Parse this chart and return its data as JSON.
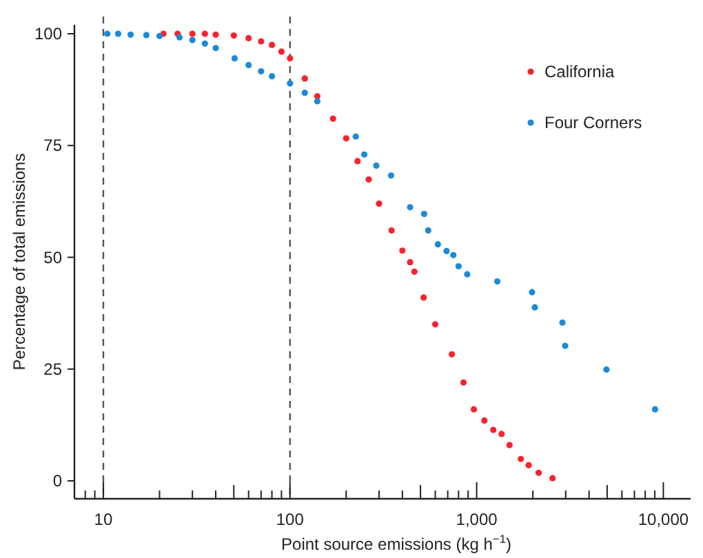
{
  "chart_data": {
    "type": "scatter",
    "xlabel": "Point source emissions (kg h$^{−1}$)",
    "ylabel": "Percentage of total emissions",
    "log": "x",
    "xlim": [
      7,
      14000
    ],
    "ylim": [
      -4,
      102
    ],
    "xticks": [
      {
        "value": 8,
        "label": null
      },
      {
        "value": 9,
        "label": null
      },
      {
        "value": 10,
        "label": "10"
      },
      {
        "value": 20,
        "label": null
      },
      {
        "value": 30,
        "label": null
      },
      {
        "value": 40,
        "label": null
      },
      {
        "value": 50,
        "label": null
      },
      {
        "value": 60,
        "label": null
      },
      {
        "value": 70,
        "label": null
      },
      {
        "value": 80,
        "label": null
      },
      {
        "value": 90,
        "label": null
      },
      {
        "value": 100,
        "label": "100"
      },
      {
        "value": 200,
        "label": null
      },
      {
        "value": 300,
        "label": null
      },
      {
        "value": 400,
        "label": null
      },
      {
        "value": 500,
        "label": null
      },
      {
        "value": 600,
        "label": null
      },
      {
        "value": 700,
        "label": null
      },
      {
        "value": 800,
        "label": null
      },
      {
        "value": 900,
        "label": null
      },
      {
        "value": 1000,
        "label": "1,000"
      },
      {
        "value": 2000,
        "label": null
      },
      {
        "value": 3000,
        "label": null
      },
      {
        "value": 4000,
        "label": null
      },
      {
        "value": 5000,
        "label": null
      },
      {
        "value": 6000,
        "label": null
      },
      {
        "value": 7000,
        "label": null
      },
      {
        "value": 8000,
        "label": null
      },
      {
        "value": 9000,
        "label": null
      },
      {
        "value": 10000,
        "label": "10,000"
      }
    ],
    "yticks": [
      0,
      25,
      50,
      75,
      100
    ],
    "grid": false,
    "legend": "top right",
    "marker": "circle",
    "ref_lines": [
      {
        "axis": "x",
        "value": 10,
        "label": null,
        "color": "#555555",
        "line_style": "dashed"
      },
      {
        "axis": "x",
        "value": 100,
        "label": null,
        "color": "#555555",
        "line_style": "dashed"
      }
    ],
    "series": [
      {
        "name": "California",
        "color": "#f8232f",
        "x": [
          21,
          25,
          30,
          35,
          40,
          50,
          60,
          70,
          80,
          90,
          100,
          120,
          140,
          170,
          200,
          230,
          264,
          300,
          350,
          400,
          440,
          464,
          520,
          600,
          736,
          850,
          966,
          1100,
          1228,
          1360,
          1500,
          1725,
          1900,
          2150,
          2550
        ],
        "values": [
          100,
          100,
          100,
          100,
          99.8,
          99.6,
          99,
          98.3,
          97.5,
          96,
          94.5,
          90,
          86,
          81,
          76.6,
          71.5,
          67.4,
          62,
          56,
          51.5,
          48.9,
          46.8,
          41,
          35,
          28.3,
          22,
          16,
          13.5,
          11.4,
          10.5,
          8,
          4.9,
          3.5,
          1.8,
          0.6
        ]
      },
      {
        "name": "Four Corners",
        "color": "#1b8ad6",
        "x": [
          10.5,
          12,
          14,
          17,
          20,
          25.6,
          30,
          35,
          40,
          50.5,
          60,
          70,
          80,
          100,
          120,
          140,
          225,
          250,
          290,
          348,
          440,
          523,
          550,
          620,
          690,
          750,
          800,
          890,
          1290,
          1980,
          2050,
          2880,
          2980,
          4960,
          9030
        ],
        "values": [
          100,
          100,
          99.8,
          99.7,
          99.5,
          99.2,
          98.6,
          97.8,
          96.8,
          94.5,
          93,
          91.6,
          90.5,
          88.9,
          86.8,
          84.9,
          77,
          73,
          70.5,
          68.3,
          61.2,
          59.7,
          56,
          52.9,
          51.4,
          50.5,
          48,
          46.2,
          44.6,
          42.2,
          38.8,
          35.4,
          30.2,
          24.9,
          16
        ]
      }
    ]
  }
}
